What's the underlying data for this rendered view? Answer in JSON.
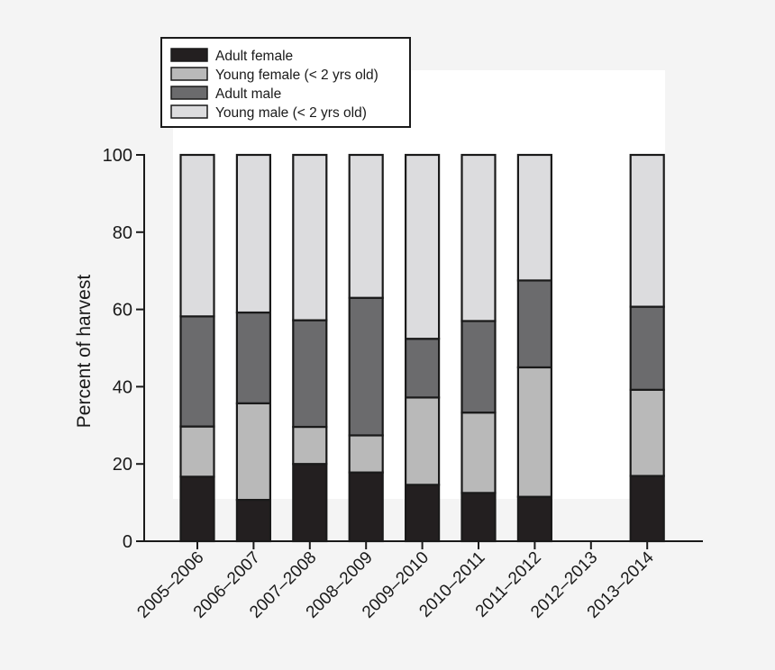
{
  "chart_data": {
    "type": "bar",
    "stacked": true,
    "ylabel": "Percent of harvest",
    "ylim": [
      0,
      100
    ],
    "yticks": [
      0,
      20,
      40,
      60,
      80,
      100
    ],
    "grid": false,
    "legend_position": "top-left",
    "categories": [
      "2005–2006",
      "2006–2007",
      "2007–2008",
      "2008–2009",
      "2009–2010",
      "2010–2011",
      "2011–2012",
      "2012–2013",
      "2013–2014"
    ],
    "series": [
      {
        "name": "Adult female",
        "color": "#231f20",
        "values": [
          16.7,
          10.7,
          20.0,
          17.8,
          14.6,
          12.5,
          11.5,
          0,
          16.9
        ]
      },
      {
        "name": "Young female (< 2 yrs old)",
        "color": "#b9b9b9",
        "values": [
          13.0,
          25.0,
          9.6,
          9.6,
          22.6,
          20.8,
          33.5,
          0,
          22.3
        ]
      },
      {
        "name": "Adult male",
        "color": "#6b6b6d",
        "values": [
          28.5,
          23.5,
          27.6,
          35.6,
          15.2,
          23.7,
          22.5,
          0,
          21.5
        ]
      },
      {
        "name": "Young male (< 2 yrs old)",
        "color": "#dcdcde",
        "values": [
          41.8,
          40.8,
          42.8,
          37.0,
          47.6,
          43.0,
          32.5,
          0,
          39.3
        ]
      }
    ]
  }
}
